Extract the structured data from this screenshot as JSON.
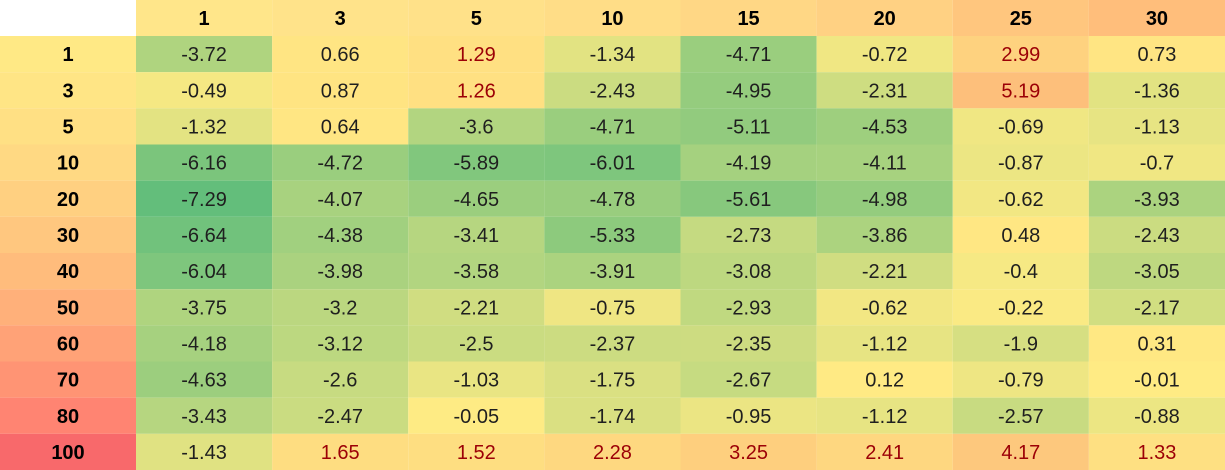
{
  "chart_data": {
    "type": "heatmap",
    "title": "",
    "xlabel": "",
    "ylabel": "",
    "columns": [
      "1",
      "3",
      "5",
      "10",
      "15",
      "20",
      "25",
      "30"
    ],
    "rows": [
      "1",
      "3",
      "5",
      "10",
      "20",
      "30",
      "40",
      "50",
      "60",
      "70",
      "80",
      "100"
    ],
    "values": [
      [
        -3.72,
        0.66,
        1.29,
        -1.34,
        -4.71,
        -0.72,
        2.99,
        0.73
      ],
      [
        -0.49,
        0.87,
        1.26,
        -2.43,
        -4.95,
        -2.31,
        5.19,
        -1.36
      ],
      [
        -1.32,
        0.64,
        -3.6,
        -4.71,
        -5.11,
        -4.53,
        -0.69,
        -1.13
      ],
      [
        -6.16,
        -4.72,
        -5.89,
        -6.01,
        -4.19,
        -4.11,
        -0.87,
        -0.7
      ],
      [
        -7.29,
        -4.07,
        -4.65,
        -4.78,
        -5.61,
        -4.98,
        -0.62,
        -3.93
      ],
      [
        -6.64,
        -4.38,
        -3.41,
        -5.33,
        -2.73,
        -3.86,
        0.48,
        -2.43
      ],
      [
        -6.04,
        -3.98,
        -3.58,
        -3.91,
        -3.08,
        -2.21,
        -0.4,
        -3.05
      ],
      [
        -3.75,
        -3.2,
        -2.21,
        -0.75,
        -2.93,
        -0.62,
        -0.22,
        -2.17
      ],
      [
        -4.18,
        -3.12,
        -2.5,
        -2.37,
        -2.35,
        -1.12,
        -1.9,
        0.31
      ],
      [
        -4.63,
        -2.6,
        -1.03,
        -1.75,
        -2.67,
        0.12,
        -0.79,
        -0.01
      ],
      [
        -3.43,
        -2.47,
        -0.05,
        -1.74,
        -0.95,
        -1.12,
        -2.57,
        -0.88
      ],
      [
        -1.43,
        1.65,
        1.52,
        2.28,
        3.25,
        2.41,
        4.17,
        1.33
      ]
    ],
    "column_header_colors": [
      "#ffe68a",
      "#ffe38a",
      "#ffe189",
      "#ffdd87",
      "#ffd785",
      "#ffd183",
      "#ffc67e",
      "#ffbe7b"
    ],
    "row_header_colors": [
      "#ffe985",
      "#ffe585",
      "#ffe084",
      "#ffd983",
      "#ffd081",
      "#ffc77f",
      "#ffbc7c",
      "#ffb07a",
      "#ffa277",
      "#ff9474",
      "#ff8472",
      "#f8696b"
    ],
    "negative_color_scale": {
      "zero": "#ffeb84",
      "min": "#63be7b"
    },
    "positive_color_scale": {
      "zero": "#ffeb84",
      "max": "#fdbf7b"
    },
    "positive_text_color": "#9c0006",
    "negative_text_color": "#1f1f1f",
    "header_text_color": "#000000"
  }
}
